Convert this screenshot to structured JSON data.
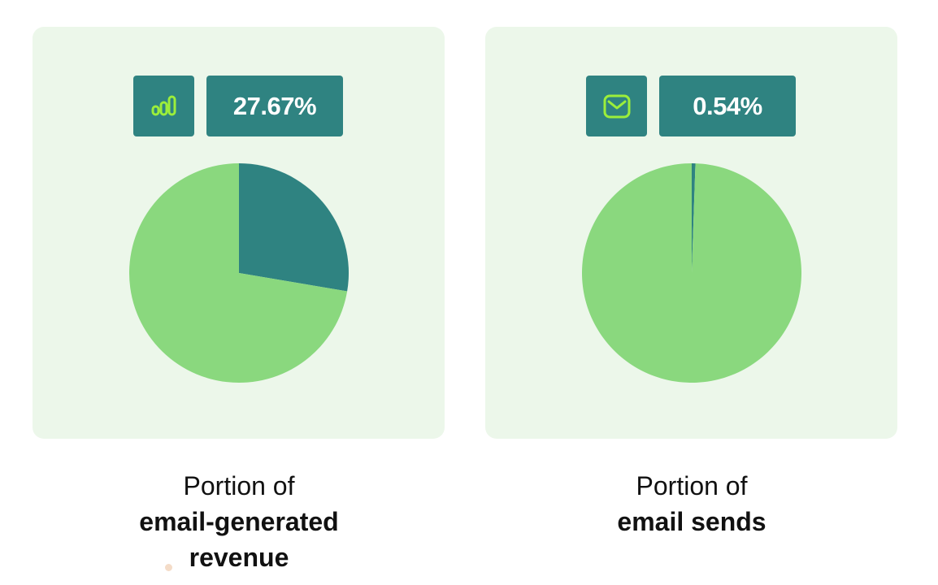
{
  "colors": {
    "panel_bg": "#ecf7ea",
    "badge_bg": "#2f8381",
    "slice_highlight": "#2f8381",
    "slice_rest": "#8ad87e",
    "icon_stroke": "#9cee3a"
  },
  "cards": [
    {
      "icon": "bar-chart-icon",
      "value_label": "27.67%",
      "caption_light": "Portion of",
      "caption_bold": "email-generated revenue"
    },
    {
      "icon": "envelope-icon",
      "value_label": "0.54%",
      "caption_light": "Portion of",
      "caption_bold": "email sends"
    }
  ],
  "chart_data": [
    {
      "type": "pie",
      "labels": [
        "",
        ""
      ],
      "values": [
        27.67,
        72.33
      ],
      "colors": [
        "#2f8381",
        "#8ad87e"
      ],
      "start_angle_deg": 0,
      "direction": "clockwise"
    },
    {
      "type": "pie",
      "labels": [
        "",
        ""
      ],
      "values": [
        0.54,
        99.46
      ],
      "colors": [
        "#2f8381",
        "#8ad87e"
      ],
      "start_angle_deg": 0,
      "direction": "clockwise"
    }
  ]
}
